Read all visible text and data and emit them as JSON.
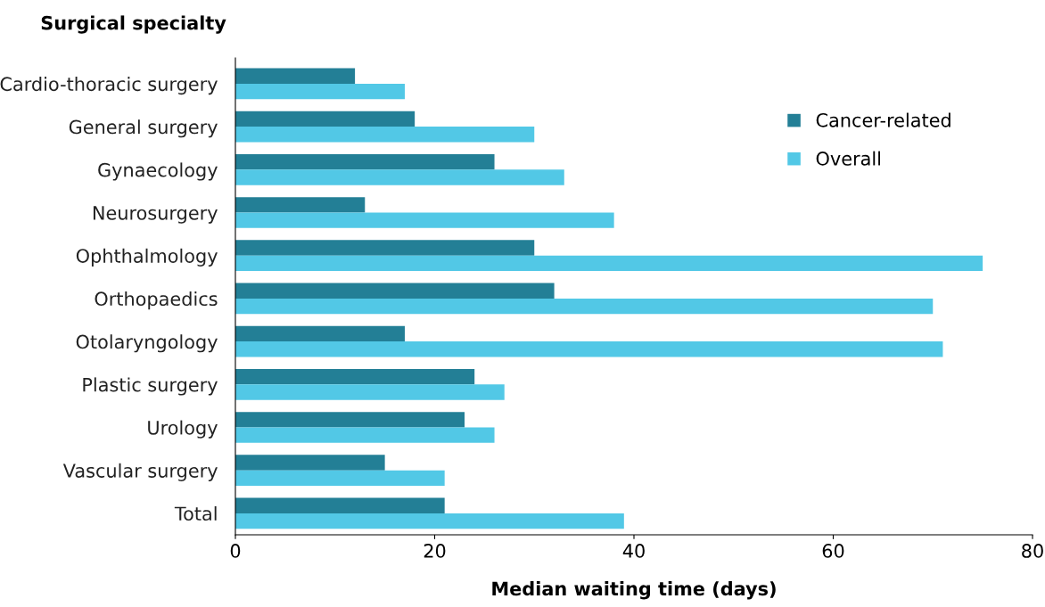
{
  "chart_data": {
    "type": "bar",
    "orientation": "horizontal",
    "ylabel": "Surgical specialty",
    "xlabel": "Median waiting time (days)",
    "categories": [
      "Cardio-thoracic surgery",
      "General surgery",
      "Gynaecology",
      "Neurosurgery",
      "Ophthalmology",
      "Orthopaedics",
      "Otolaryngology",
      "Plastic surgery",
      "Urology",
      "Vascular surgery",
      "Total"
    ],
    "series": [
      {
        "name": "Cancer-related",
        "color": "#237f96",
        "values": [
          12,
          18,
          26,
          13,
          30,
          32,
          17,
          24,
          23,
          15,
          21
        ]
      },
      {
        "name": "Overall",
        "color": "#52c8e6",
        "values": [
          17,
          30,
          33,
          38,
          75,
          70,
          71,
          27,
          26,
          21,
          39
        ]
      }
    ],
    "xlim": [
      0,
      80
    ],
    "xticks": [
      0,
      20,
      40,
      60,
      80
    ],
    "grid": false,
    "legend": "top right"
  }
}
